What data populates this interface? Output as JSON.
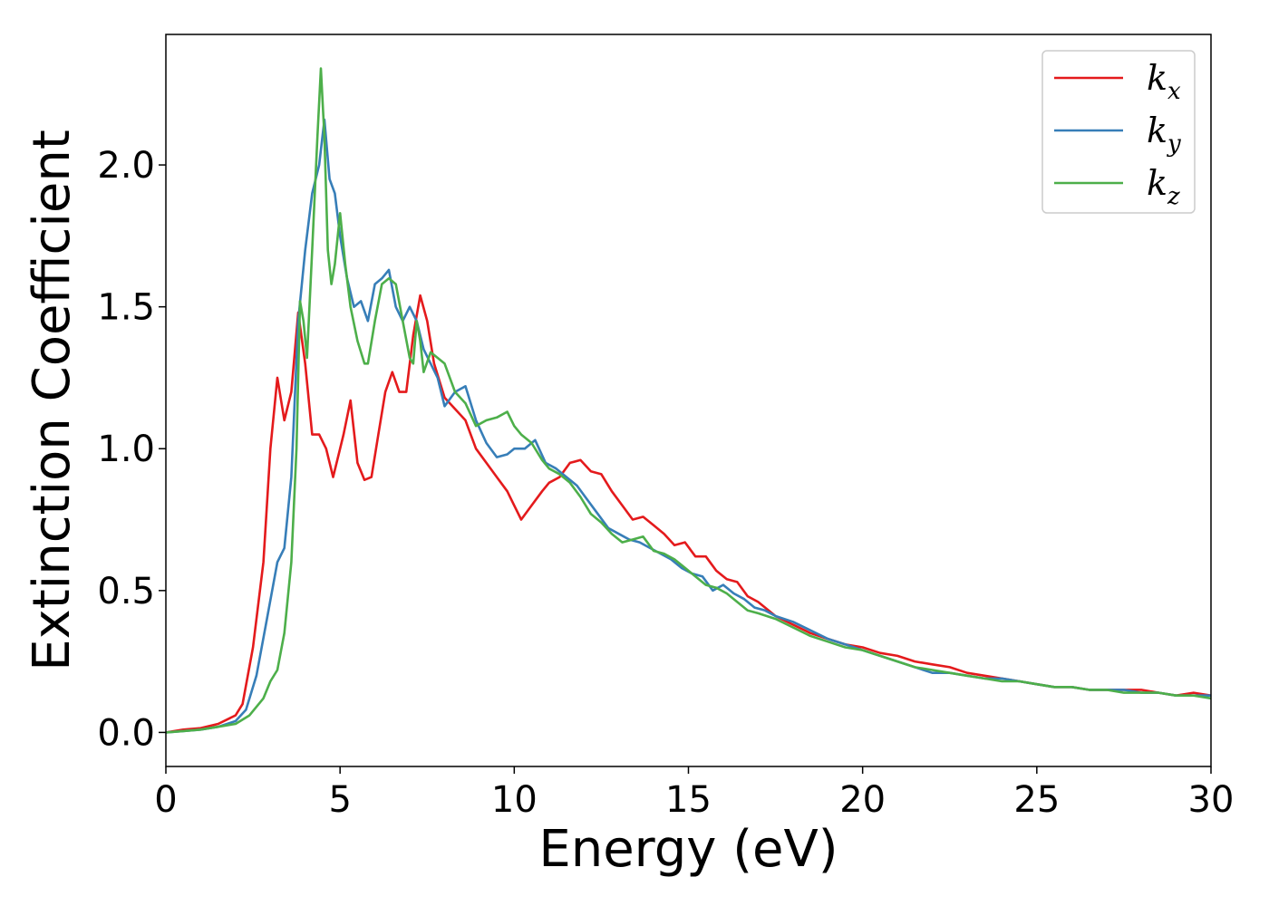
{
  "chart_data": {
    "type": "line",
    "xlabel": "Energy (eV)",
    "ylabel": "Extinction Coefficient",
    "xlim": [
      0,
      30
    ],
    "ylim": [
      -0.12,
      2.46
    ],
    "xticks": [
      0,
      5,
      10,
      15,
      20,
      25,
      30
    ],
    "xtick_labels": [
      "0",
      "5",
      "10",
      "15",
      "20",
      "25",
      "30"
    ],
    "yticks": [
      0.0,
      0.5,
      1.0,
      1.5,
      2.0
    ],
    "ytick_labels": [
      "0.0",
      "0.5",
      "1.0",
      "1.5",
      "2.0"
    ],
    "grid": false,
    "legend_position": "top-right",
    "series": [
      {
        "name_base": "k",
        "name_sub": "x",
        "color": "#e41a1c",
        "x": [
          0,
          0.5,
          1,
          1.5,
          2,
          2.2,
          2.5,
          2.8,
          3.0,
          3.2,
          3.4,
          3.6,
          3.8,
          4.0,
          4.2,
          4.4,
          4.6,
          4.8,
          5.0,
          5.1,
          5.3,
          5.5,
          5.7,
          5.9,
          6.1,
          6.3,
          6.5,
          6.7,
          6.9,
          7.1,
          7.3,
          7.5,
          7.7,
          8.0,
          8.3,
          8.6,
          8.9,
          9.2,
          9.5,
          9.8,
          10.0,
          10.2,
          10.5,
          10.8,
          11.0,
          11.3,
          11.6,
          11.9,
          12.2,
          12.5,
          12.8,
          13.1,
          13.4,
          13.7,
          14.0,
          14.3,
          14.6,
          14.9,
          15.2,
          15.5,
          15.8,
          16.1,
          16.4,
          16.7,
          17.0,
          17.5,
          18.0,
          18.5,
          19.0,
          19.5,
          20.0,
          20.5,
          21.0,
          21.5,
          22.0,
          22.5,
          23.0,
          23.5,
          24.0,
          24.5,
          25.0,
          25.5,
          26.0,
          26.5,
          27.0,
          27.5,
          28.0,
          28.5,
          29.0,
          29.5,
          30.0
        ],
        "values": [
          0.0,
          0.01,
          0.015,
          0.03,
          0.06,
          0.1,
          0.3,
          0.6,
          1.0,
          1.25,
          1.1,
          1.2,
          1.48,
          1.3,
          1.05,
          1.05,
          1.0,
          0.9,
          1.0,
          1.05,
          1.17,
          0.95,
          0.89,
          0.9,
          1.05,
          1.2,
          1.27,
          1.2,
          1.2,
          1.4,
          1.54,
          1.45,
          1.3,
          1.18,
          1.14,
          1.1,
          1.0,
          0.95,
          0.9,
          0.85,
          0.8,
          0.75,
          0.8,
          0.85,
          0.88,
          0.9,
          0.95,
          0.96,
          0.92,
          0.91,
          0.85,
          0.8,
          0.75,
          0.76,
          0.73,
          0.7,
          0.66,
          0.67,
          0.62,
          0.62,
          0.57,
          0.54,
          0.53,
          0.48,
          0.46,
          0.41,
          0.38,
          0.35,
          0.33,
          0.31,
          0.3,
          0.28,
          0.27,
          0.25,
          0.24,
          0.23,
          0.21,
          0.2,
          0.19,
          0.18,
          0.17,
          0.16,
          0.16,
          0.15,
          0.15,
          0.15,
          0.15,
          0.14,
          0.13,
          0.14,
          0.13
        ]
      },
      {
        "name_base": "k",
        "name_sub": "y",
        "color": "#377eb8",
        "x": [
          0,
          0.5,
          1,
          1.5,
          2,
          2.3,
          2.6,
          2.9,
          3.2,
          3.4,
          3.6,
          3.8,
          4.0,
          4.2,
          4.4,
          4.55,
          4.7,
          4.85,
          5.0,
          5.2,
          5.4,
          5.6,
          5.8,
          6.0,
          6.2,
          6.4,
          6.6,
          6.8,
          7.0,
          7.2,
          7.4,
          7.6,
          7.8,
          8.0,
          8.3,
          8.6,
          8.9,
          9.2,
          9.5,
          9.8,
          10.0,
          10.3,
          10.6,
          10.9,
          11.2,
          11.5,
          11.8,
          12.1,
          12.4,
          12.7,
          13.0,
          13.3,
          13.6,
          13.9,
          14.2,
          14.5,
          14.8,
          15.1,
          15.4,
          15.7,
          16.0,
          16.3,
          16.6,
          16.9,
          17.2,
          17.5,
          18.0,
          18.5,
          19.0,
          19.5,
          20.0,
          20.5,
          21.0,
          21.5,
          22.0,
          22.5,
          23.0,
          23.5,
          24.0,
          24.5,
          25.0,
          25.5,
          26.0,
          26.5,
          27.0,
          27.5,
          28.0,
          28.5,
          29.0,
          29.5,
          30.0
        ],
        "values": [
          0.0,
          0.005,
          0.01,
          0.02,
          0.04,
          0.08,
          0.2,
          0.4,
          0.6,
          0.65,
          0.9,
          1.45,
          1.7,
          1.9,
          2.0,
          2.16,
          1.95,
          1.9,
          1.75,
          1.6,
          1.5,
          1.52,
          1.45,
          1.58,
          1.6,
          1.63,
          1.5,
          1.45,
          1.5,
          1.45,
          1.35,
          1.3,
          1.25,
          1.15,
          1.2,
          1.22,
          1.1,
          1.02,
          0.97,
          0.98,
          1.0,
          1.0,
          1.03,
          0.95,
          0.93,
          0.9,
          0.87,
          0.82,
          0.77,
          0.72,
          0.7,
          0.68,
          0.67,
          0.65,
          0.63,
          0.61,
          0.58,
          0.56,
          0.55,
          0.5,
          0.52,
          0.49,
          0.47,
          0.44,
          0.43,
          0.41,
          0.39,
          0.36,
          0.33,
          0.31,
          0.29,
          0.27,
          0.25,
          0.23,
          0.21,
          0.21,
          0.2,
          0.19,
          0.19,
          0.18,
          0.17,
          0.16,
          0.16,
          0.15,
          0.15,
          0.15,
          0.14,
          0.14,
          0.13,
          0.13,
          0.13
        ]
      },
      {
        "name_base": "k",
        "name_sub": "z",
        "color": "#4daf4a",
        "x": [
          0,
          0.5,
          1,
          1.5,
          2,
          2.4,
          2.8,
          3.0,
          3.2,
          3.4,
          3.6,
          3.75,
          3.85,
          3.95,
          4.05,
          4.2,
          4.35,
          4.45,
          4.55,
          4.65,
          4.75,
          4.85,
          5.0,
          5.15,
          5.3,
          5.5,
          5.7,
          5.8,
          6.0,
          6.2,
          6.4,
          6.6,
          6.8,
          7.0,
          7.1,
          7.2,
          7.3,
          7.4,
          7.6,
          7.8,
          8.0,
          8.3,
          8.6,
          8.9,
          9.2,
          9.5,
          9.8,
          10.0,
          10.2,
          10.5,
          10.8,
          11.0,
          11.3,
          11.6,
          11.9,
          12.2,
          12.5,
          12.8,
          13.1,
          13.4,
          13.7,
          14.0,
          14.3,
          14.6,
          14.9,
          15.2,
          15.5,
          15.8,
          16.1,
          16.4,
          16.7,
          17.0,
          17.5,
          18.0,
          18.5,
          19.0,
          19.5,
          20.0,
          20.5,
          21.0,
          21.5,
          22.0,
          22.5,
          23.0,
          23.5,
          24.0,
          24.5,
          25.0,
          25.5,
          26.0,
          26.5,
          27.0,
          27.5,
          28.0,
          28.5,
          29.0,
          29.5,
          30.0
        ],
        "values": [
          0.0,
          0.005,
          0.01,
          0.02,
          0.03,
          0.06,
          0.12,
          0.18,
          0.22,
          0.35,
          0.6,
          1.0,
          1.52,
          1.45,
          1.32,
          1.7,
          2.1,
          2.34,
          2.1,
          1.7,
          1.58,
          1.65,
          1.83,
          1.65,
          1.5,
          1.38,
          1.3,
          1.3,
          1.45,
          1.58,
          1.6,
          1.58,
          1.45,
          1.32,
          1.3,
          1.45,
          1.38,
          1.27,
          1.34,
          1.32,
          1.3,
          1.2,
          1.16,
          1.08,
          1.1,
          1.11,
          1.13,
          1.08,
          1.05,
          1.02,
          0.96,
          0.93,
          0.91,
          0.88,
          0.83,
          0.77,
          0.74,
          0.7,
          0.67,
          0.68,
          0.69,
          0.64,
          0.63,
          0.61,
          0.58,
          0.55,
          0.52,
          0.51,
          0.49,
          0.46,
          0.43,
          0.42,
          0.4,
          0.37,
          0.34,
          0.32,
          0.3,
          0.29,
          0.27,
          0.25,
          0.23,
          0.22,
          0.21,
          0.2,
          0.19,
          0.18,
          0.18,
          0.17,
          0.16,
          0.16,
          0.15,
          0.15,
          0.14,
          0.14,
          0.14,
          0.13,
          0.13,
          0.12
        ]
      }
    ]
  }
}
